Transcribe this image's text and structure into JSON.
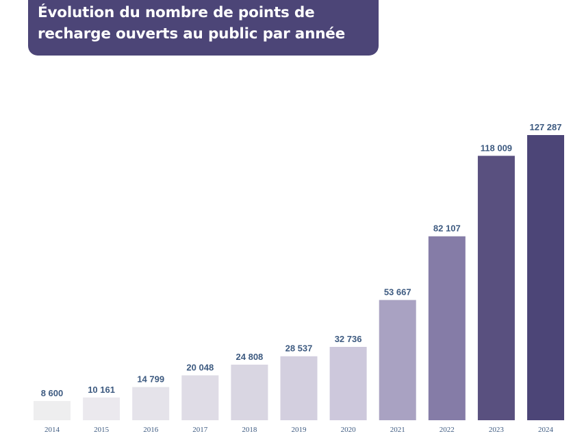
{
  "title": "Évolution du nombre de points de recharge ouverts au public par année",
  "chart_data": {
    "type": "bar",
    "title": "Évolution du nombre de points de recharge ouverts au public par année",
    "categories": [
      "2014",
      "2015",
      "2016",
      "2017",
      "2018",
      "2019",
      "2020",
      "2021",
      "2022",
      "2023",
      "2024"
    ],
    "values": [
      8600,
      10161,
      14799,
      20048,
      24808,
      28537,
      32736,
      53667,
      82107,
      118009,
      127287
    ],
    "value_labels": [
      "8 600",
      "10 161",
      "14 799",
      "20 048",
      "24 808",
      "28 537",
      "32 736",
      "53 667",
      "82 107",
      "118 009",
      "127 287"
    ],
    "bar_colors": [
      "#eeeeef",
      "#ebe9ee",
      "#e5e3ea",
      "#dfdce6",
      "#d9d6e2",
      "#d3cfdf",
      "#cdc8dc",
      "#a9a2c2",
      "#857ca7",
      "#59507f",
      "#4c4577"
    ],
    "xlabel": "",
    "ylabel": "",
    "grid": false,
    "legend": "none"
  }
}
